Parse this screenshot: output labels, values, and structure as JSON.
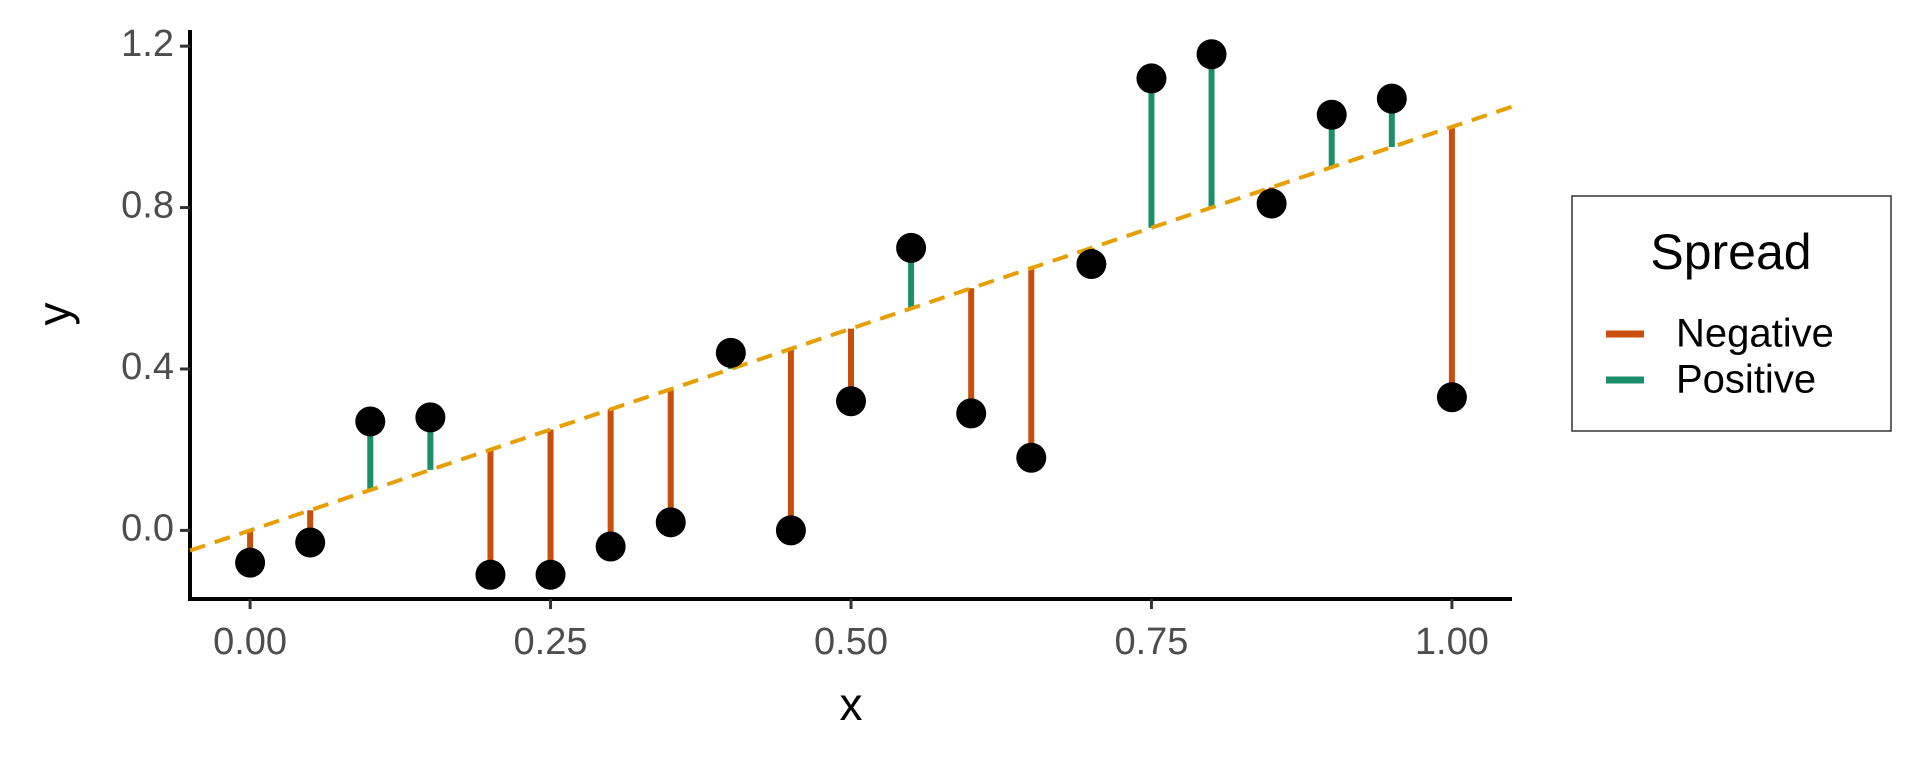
{
  "chart_data": {
    "type": "scatter",
    "x_label": "x",
    "y_label": "y",
    "x": [
      0,
      0.05,
      0.1,
      0.15,
      0.2,
      0.25,
      0.3,
      0.35,
      0.4,
      0.45,
      0.5,
      0.55,
      0.6,
      0.65,
      0.7,
      0.75,
      0.8,
      0.85,
      0.9,
      0.95,
      1
    ],
    "y": [
      -0.08,
      -0.03,
      0.27,
      0.28,
      -0.11,
      -0.11,
      -0.04,
      0.02,
      0.44,
      0.0,
      0.32,
      0.7,
      0.29,
      0.18,
      0.66,
      1.12,
      1.18,
      0.81,
      1.03,
      1.07,
      0.33
    ],
    "point_color": "#000000",
    "reference_line": {
      "intercept": 0,
      "slope": 1,
      "color": "#e69f00",
      "dashed": true
    },
    "xlim": [
      -0.05,
      1.05
    ],
    "ylim": [
      -0.17,
      1.24
    ],
    "xticks": [
      {
        "value": 0,
        "label": "0.00"
      },
      {
        "value": 0.25,
        "label": "0.25"
      },
      {
        "value": 0.5,
        "label": "0.50"
      },
      {
        "value": 0.75,
        "label": "0.75"
      },
      {
        "value": 1,
        "label": "1.00"
      }
    ],
    "yticks": [
      {
        "value": 0,
        "label": "0.0"
      },
      0.4,
      0.8,
      1.2
    ],
    "grid": false,
    "legend": {
      "title": "Spread",
      "position": "right",
      "entries": [
        {
          "name": "Negative",
          "color": "#c94f0d"
        },
        {
          "name": "Positive",
          "color": "#1b8f6a"
        }
      ]
    }
  }
}
